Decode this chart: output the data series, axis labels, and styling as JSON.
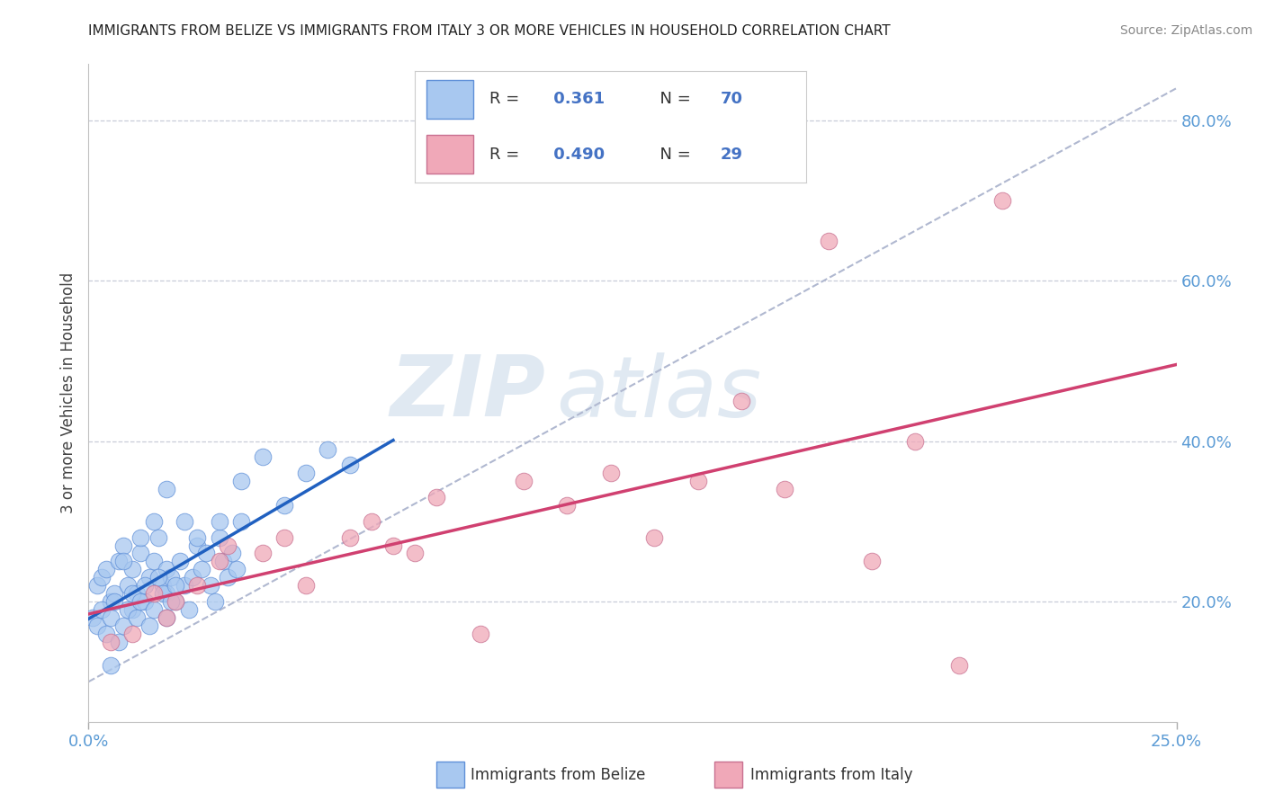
{
  "title": "IMMIGRANTS FROM BELIZE VS IMMIGRANTS FROM ITALY 3 OR MORE VEHICLES IN HOUSEHOLD CORRELATION CHART",
  "source": "Source: ZipAtlas.com",
  "ylabel": "3 or more Vehicles in Household",
  "xlim": [
    0.0,
    0.25
  ],
  "ylim": [
    0.05,
    0.87
  ],
  "ytick_values": [
    0.2,
    0.4,
    0.6,
    0.8
  ],
  "r_belize": 0.361,
  "n_belize": 70,
  "r_italy": 0.49,
  "n_italy": 29,
  "color_belize": "#a8c8f0",
  "color_italy": "#f0a8b8",
  "color_belize_line": "#2060c0",
  "color_italy_line": "#d04070",
  "color_dashed": "#b0b8d0",
  "watermark_zip": "ZIP",
  "watermark_atlas": "atlas",
  "belize_x": [
    0.002,
    0.003,
    0.004,
    0.005,
    0.006,
    0.007,
    0.008,
    0.009,
    0.01,
    0.01,
    0.011,
    0.012,
    0.013,
    0.014,
    0.015,
    0.016,
    0.017,
    0.018,
    0.018,
    0.019,
    0.02,
    0.021,
    0.022,
    0.023,
    0.024,
    0.025,
    0.026,
    0.027,
    0.028,
    0.029,
    0.03,
    0.031,
    0.032,
    0.033,
    0.034,
    0.035,
    0.001,
    0.002,
    0.003,
    0.004,
    0.005,
    0.006,
    0.007,
    0.008,
    0.009,
    0.01,
    0.011,
    0.012,
    0.013,
    0.014,
    0.015,
    0.016,
    0.017,
    0.018,
    0.019,
    0.02,
    0.025,
    0.03,
    0.035,
    0.04,
    0.045,
    0.05,
    0.055,
    0.06,
    0.022,
    0.018,
    0.015,
    0.012,
    0.008,
    0.005
  ],
  "belize_y": [
    0.22,
    0.23,
    0.24,
    0.2,
    0.21,
    0.25,
    0.27,
    0.22,
    0.24,
    0.19,
    0.21,
    0.26,
    0.2,
    0.23,
    0.25,
    0.28,
    0.22,
    0.24,
    0.21,
    0.23,
    0.2,
    0.25,
    0.22,
    0.19,
    0.23,
    0.27,
    0.24,
    0.26,
    0.22,
    0.2,
    0.28,
    0.25,
    0.23,
    0.26,
    0.24,
    0.3,
    0.18,
    0.17,
    0.19,
    0.16,
    0.18,
    0.2,
    0.15,
    0.17,
    0.19,
    0.21,
    0.18,
    0.2,
    0.22,
    0.17,
    0.19,
    0.23,
    0.21,
    0.18,
    0.2,
    0.22,
    0.28,
    0.3,
    0.35,
    0.38,
    0.32,
    0.36,
    0.39,
    0.37,
    0.3,
    0.34,
    0.3,
    0.28,
    0.25,
    0.12
  ],
  "italy_x": [
    0.005,
    0.01,
    0.015,
    0.018,
    0.02,
    0.025,
    0.03,
    0.032,
    0.04,
    0.045,
    0.05,
    0.06,
    0.065,
    0.07,
    0.075,
    0.08,
    0.09,
    0.1,
    0.11,
    0.12,
    0.13,
    0.14,
    0.15,
    0.16,
    0.17,
    0.18,
    0.19,
    0.2,
    0.21
  ],
  "italy_y": [
    0.15,
    0.16,
    0.21,
    0.18,
    0.2,
    0.22,
    0.25,
    0.27,
    0.26,
    0.28,
    0.22,
    0.28,
    0.3,
    0.27,
    0.26,
    0.33,
    0.16,
    0.35,
    0.32,
    0.36,
    0.28,
    0.35,
    0.45,
    0.34,
    0.65,
    0.25,
    0.4,
    0.12,
    0.7
  ]
}
